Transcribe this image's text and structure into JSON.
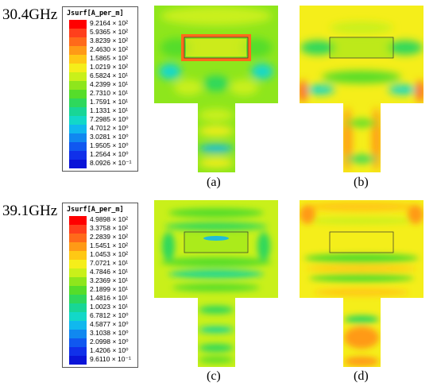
{
  "rows": [
    {
      "frequency": "30.4GHz",
      "legend": {
        "title": "Jsurf[A_per_m]",
        "entries": [
          {
            "label": "9.2164 × 10²",
            "color": "#ff0000"
          },
          {
            "label": "5.9365 × 10²",
            "color": "#ff3f1c"
          },
          {
            "label": "3.8239 × 10²",
            "color": "#ff6a1a"
          },
          {
            "label": "2.4630 × 10²",
            "color": "#ff9a16"
          },
          {
            "label": "1.5865 × 10²",
            "color": "#ffc814"
          },
          {
            "label": "1.0219 × 10²",
            "color": "#f5ee1a"
          },
          {
            "label": "6.5824 × 10¹",
            "color": "#c9f01a"
          },
          {
            "label": "4.2399 × 10¹",
            "color": "#8ee61c"
          },
          {
            "label": "2.7310 × 10¹",
            "color": "#55dd2a"
          },
          {
            "label": "1.7591 × 10¹",
            "color": "#2ed85c"
          },
          {
            "label": "1.1331 × 10¹",
            "color": "#18d696"
          },
          {
            "label": "7.2985 × 10⁰",
            "color": "#12d8c8"
          },
          {
            "label": "4.7012 × 10⁰",
            "color": "#10b8ee"
          },
          {
            "label": "3.0281 × 10⁰",
            "color": "#1088f0"
          },
          {
            "label": "1.9505 × 10⁰",
            "color": "#1058f0"
          },
          {
            "label": "1.2564 × 10⁰",
            "color": "#1030ea"
          },
          {
            "label": "8.0926 × 10⁻¹",
            "color": "#0a14d8"
          }
        ]
      }
    },
    {
      "frequency": "39.1GHz",
      "legend": {
        "title": "Jsurf[A_per_m]",
        "entries": [
          {
            "label": "4.9898 × 10²",
            "color": "#ff0000"
          },
          {
            "label": "3.3758 × 10²",
            "color": "#ff3f1c"
          },
          {
            "label": "2.2839 × 10²",
            "color": "#ff6a1a"
          },
          {
            "label": "1.5451 × 10²",
            "color": "#ff9a16"
          },
          {
            "label": "1.0453 × 10²",
            "color": "#ffc814"
          },
          {
            "label": "7.0721 × 10¹",
            "color": "#f5ee1a"
          },
          {
            "label": "4.7846 × 10¹",
            "color": "#c9f01a"
          },
          {
            "label": "3.2369 × 10¹",
            "color": "#8ee61c"
          },
          {
            "label": "2.1899 × 10¹",
            "color": "#55dd2a"
          },
          {
            "label": "1.4816 × 10¹",
            "color": "#2ed85c"
          },
          {
            "label": "1.0023 × 10¹",
            "color": "#18d696"
          },
          {
            "label": "6.7812 × 10⁰",
            "color": "#12d8c8"
          },
          {
            "label": "4.5877 × 10⁰",
            "color": "#10b8ee"
          },
          {
            "label": "3.1038 × 10⁰",
            "color": "#1088f0"
          },
          {
            "label": "2.0998 × 10⁰",
            "color": "#1058f0"
          },
          {
            "label": "1.4206 × 10⁰",
            "color": "#1030ea"
          },
          {
            "label": "9.6110 × 10⁻¹",
            "color": "#0a14d8"
          }
        ]
      }
    }
  ],
  "panels": [
    {
      "label": "(a)",
      "base_color": "#8ee61c"
    },
    {
      "label": "(b)",
      "base_color": "#f5ee1a"
    },
    {
      "label": "(c)",
      "base_color": "#c9f01a"
    },
    {
      "label": "(d)",
      "base_color": "#f5ee1a"
    }
  ],
  "colors": {
    "edge_dark": "#444444",
    "slot_line": "#333333"
  }
}
